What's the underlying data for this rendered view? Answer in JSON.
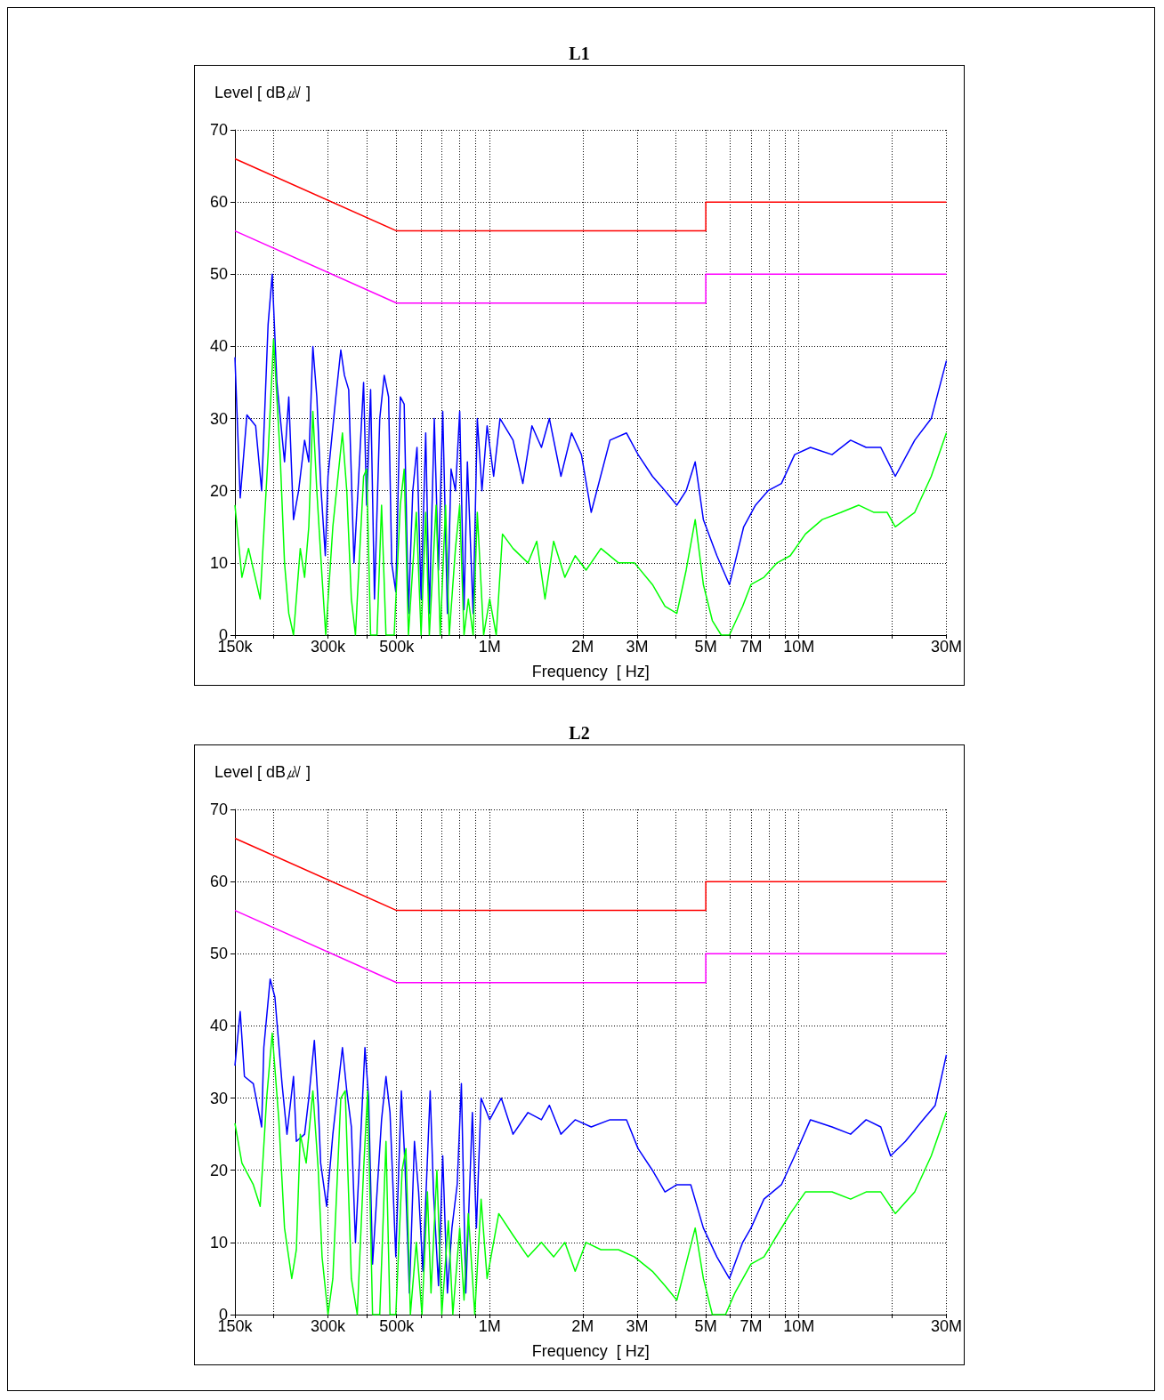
{
  "chart_data": [
    {
      "type": "line",
      "title": "L1",
      "xlabel": "Frequency  [ Hz]",
      "ylabel": "Level [ dB㎶ ]",
      "log": "x",
      "grid": true,
      "xlim": [
        150000,
        30000000
      ],
      "ylim": [
        0,
        70
      ],
      "xticks": [
        {
          "value": 150000,
          "label": "150k"
        },
        {
          "value": 200000,
          "label": null
        },
        {
          "value": 300000,
          "label": "300k"
        },
        {
          "value": 400000,
          "label": null
        },
        {
          "value": 500000,
          "label": "500k"
        },
        {
          "value": 600000,
          "label": null
        },
        {
          "value": 700000,
          "label": null
        },
        {
          "value": 800000,
          "label": null
        },
        {
          "value": 900000,
          "label": null
        },
        {
          "value": 1000000,
          "label": "1M"
        },
        {
          "value": 2000000,
          "label": "2M"
        },
        {
          "value": 3000000,
          "label": "3M"
        },
        {
          "value": 4000000,
          "label": null
        },
        {
          "value": 5000000,
          "label": "5M"
        },
        {
          "value": 6000000,
          "label": null
        },
        {
          "value": 7000000,
          "label": "7M"
        },
        {
          "value": 8000000,
          "label": null
        },
        {
          "value": 9000000,
          "label": null
        },
        {
          "value": 10000000,
          "label": "10M"
        },
        {
          "value": 20000000,
          "label": null
        },
        {
          "value": 30000000,
          "label": "30M"
        }
      ],
      "yticks": [
        0,
        10,
        20,
        30,
        40,
        50,
        60,
        70
      ],
      "series": [
        {
          "color": "#ff0000",
          "x": [
            150000,
            500000,
            5000000,
            5000000,
            30000000
          ],
          "values": [
            66,
            56,
            56,
            60,
            60
          ]
        },
        {
          "color": "#ff00ff",
          "x": [
            150000,
            500000,
            5000000,
            5000000,
            30000000
          ],
          "values": [
            56,
            46,
            46,
            50,
            50
          ]
        },
        {
          "color": "#0000ff",
          "x": [
            150000,
            156000,
            164000,
            175000,
            183000,
            192000,
            198000,
            205000,
            217000,
            224000,
            232000,
            241000,
            252000,
            260000,
            268000,
            276000,
            284000,
            294000,
            300000,
            318000,
            330000,
            339000,
            350000,
            364000,
            375000,
            391000,
            400000,
            412000,
            424000,
            441000,
            456000,
            471000,
            482000,
            497000,
            514000,
            529000,
            546000,
            564000,
            582000,
            600000,
            621000,
            638000,
            662000,
            683000,
            705000,
            730000,
            750000,
            775000,
            800000,
            826000,
            847000,
            884000,
            912000,
            944000,
            981000,
            1030000,
            1080000,
            1190000,
            1280000,
            1370000,
            1470000,
            1560000,
            1700000,
            1840000,
            1980000,
            2130000,
            2450000,
            2770000,
            3020000,
            3360000,
            3690000,
            4030000,
            4320000,
            4620000,
            4910000,
            5430000,
            5960000,
            6210000,
            6630000,
            7240000,
            7950000,
            8780000,
            9690000,
            10900000,
            12800000,
            14700000,
            16500000,
            18400000,
            20500000,
            23700000,
            26800000,
            30000000
          ],
          "values": [
            38.5,
            19,
            30.5,
            29,
            20,
            43,
            50,
            35,
            24,
            33,
            16,
            20,
            27,
            24,
            40,
            33,
            21,
            11,
            22,
            33,
            39.5,
            36,
            34,
            10,
            20,
            35,
            18,
            34,
            5,
            30,
            36,
            33,
            10,
            6,
            33,
            32,
            3,
            20,
            26,
            5,
            28,
            3,
            30,
            9,
            31,
            3,
            23,
            20,
            31,
            3.5,
            24,
            3,
            30,
            20,
            29,
            22,
            30,
            27,
            21,
            29,
            26,
            30,
            22,
            28,
            25,
            17,
            27,
            28,
            25,
            22,
            20,
            18,
            20,
            24,
            16,
            11,
            7,
            10,
            15,
            18,
            20,
            21,
            25,
            26,
            25,
            27,
            26,
            26,
            22,
            27,
            30,
            38
          ]
        },
        {
          "color": "#00ff00",
          "x": [
            150000,
            158000,
            166000,
            181000,
            192000,
            200000,
            210000,
            217000,
            224000,
            232000,
            244000,
            252000,
            260000,
            268000,
            276000,
            287000,
            295000,
            311000,
            334000,
            345000,
            357000,
            368000,
            391000,
            400000,
            412000,
            432000,
            447000,
            462000,
            491000,
            514000,
            529000,
            546000,
            579000,
            600000,
            621000,
            638000,
            671000,
            692000,
            720000,
            740000,
            775000,
            800000,
            826000,
            853000,
            884000,
            912000,
            956000,
            1000000,
            1050000,
            1100000,
            1190000,
            1330000,
            1420000,
            1510000,
            1610000,
            1750000,
            1890000,
            2050000,
            2290000,
            2610000,
            2940000,
            3360000,
            3690000,
            4030000,
            4320000,
            4620000,
            4910000,
            5250000,
            5610000,
            5960000,
            6580000,
            7000000,
            7710000,
            8500000,
            9380000,
            10500000,
            11900000,
            13700000,
            15600000,
            17500000,
            19300000,
            20500000,
            23700000,
            26800000,
            30000000
          ],
          "values": [
            18,
            8,
            12,
            5,
            25,
            41,
            25,
            10,
            3,
            0,
            12,
            8,
            15,
            31,
            20,
            8,
            0,
            15,
            28,
            20,
            5,
            0,
            22,
            23,
            0,
            0,
            18,
            0,
            0,
            18,
            23,
            0,
            17,
            0,
            17,
            0,
            18,
            0,
            18,
            0,
            12,
            18,
            0,
            5,
            0,
            17,
            0,
            5,
            0,
            14,
            12,
            10,
            13,
            5,
            13,
            8,
            11,
            9,
            12,
            10,
            10,
            7,
            4,
            3,
            9,
            16,
            7,
            2,
            0,
            0,
            4,
            7,
            8,
            10,
            11,
            14,
            16,
            17,
            18,
            17,
            17,
            15,
            17,
            22,
            28
          ]
        }
      ]
    },
    {
      "type": "line",
      "title": "L2",
      "xlabel": "Frequency  [ Hz]",
      "ylabel": "Level [ dB㎶ ]",
      "log": "x",
      "grid": true,
      "xlim": [
        150000,
        30000000
      ],
      "ylim": [
        0,
        70
      ],
      "xticks": [
        {
          "value": 150000,
          "label": "150k"
        },
        {
          "value": 200000,
          "label": null
        },
        {
          "value": 300000,
          "label": "300k"
        },
        {
          "value": 400000,
          "label": null
        },
        {
          "value": 500000,
          "label": "500k"
        },
        {
          "value": 600000,
          "label": null
        },
        {
          "value": 700000,
          "label": null
        },
        {
          "value": 800000,
          "label": null
        },
        {
          "value": 900000,
          "label": null
        },
        {
          "value": 1000000,
          "label": "1M"
        },
        {
          "value": 2000000,
          "label": "2M"
        },
        {
          "value": 3000000,
          "label": "3M"
        },
        {
          "value": 4000000,
          "label": null
        },
        {
          "value": 5000000,
          "label": "5M"
        },
        {
          "value": 6000000,
          "label": null
        },
        {
          "value": 7000000,
          "label": "7M"
        },
        {
          "value": 8000000,
          "label": null
        },
        {
          "value": 9000000,
          "label": null
        },
        {
          "value": 10000000,
          "label": "10M"
        },
        {
          "value": 20000000,
          "label": null
        },
        {
          "value": 30000000,
          "label": "30M"
        }
      ],
      "yticks": [
        0,
        10,
        20,
        30,
        40,
        50,
        60,
        70
      ],
      "series": [
        {
          "color": "#ff0000",
          "x": [
            150000,
            500000,
            5000000,
            5000000,
            30000000
          ],
          "values": [
            66,
            56,
            56,
            60,
            60
          ]
        },
        {
          "color": "#ff00ff",
          "x": [
            150000,
            500000,
            5000000,
            5000000,
            30000000
          ],
          "values": [
            56,
            46,
            46,
            50,
            50
          ]
        },
        {
          "color": "#0000ff",
          "x": [
            150000,
            156000,
            161000,
            172000,
            183000,
            186000,
            195000,
            202000,
            213000,
            221000,
            232000,
            237000,
            252000,
            260000,
            271000,
            279000,
            284000,
            297000,
            311000,
            334000,
            345000,
            357000,
            368000,
            384000,
            395000,
            406000,
            418000,
            447000,
            462000,
            476000,
            497000,
            518000,
            532000,
            550000,
            571000,
            589000,
            608000,
            642000,
            658000,
            683000,
            705000,
            730000,
            755000,
            785000,
            810000,
            837000,
            879000,
            906000,
            938000,
            1000000,
            1090000,
            1190000,
            1330000,
            1470000,
            1560000,
            1700000,
            1890000,
            2130000,
            2450000,
            2770000,
            3020000,
            3360000,
            3690000,
            4030000,
            4470000,
            4910000,
            5430000,
            5960000,
            6580000,
            7000000,
            7710000,
            8780000,
            9690000,
            10900000,
            12800000,
            14700000,
            16500000,
            18400000,
            19800000,
            22100000,
            25200000,
            27600000,
            30000000
          ],
          "values": [
            34.5,
            42,
            33,
            32,
            26,
            37,
            46.5,
            44,
            32,
            25,
            33,
            24,
            25,
            30,
            38,
            29,
            21,
            15,
            25,
            37,
            31,
            26,
            10,
            26,
            37,
            30,
            7,
            27,
            33,
            28,
            8,
            31,
            21,
            3,
            24,
            17,
            6,
            31,
            17,
            4,
            22,
            3,
            12,
            18,
            32,
            3,
            28,
            12,
            30,
            27,
            30,
            25,
            28,
            27,
            29,
            25,
            27,
            26,
            27,
            27,
            23,
            20,
            17,
            18,
            18,
            12,
            8,
            5,
            10,
            12,
            16,
            18,
            22,
            27,
            26,
            25,
            27,
            26,
            22,
            24,
            27,
            29,
            36
          ]
        },
        {
          "color": "#00ff00",
          "x": [
            150000,
            158000,
            172000,
            181000,
            190000,
            198000,
            208000,
            217000,
            229000,
            237000,
            244000,
            255000,
            268000,
            279000,
            287000,
            300000,
            311000,
            330000,
            341000,
            357000,
            373000,
            391000,
            403000,
            418000,
            441000,
            462000,
            476000,
            497000,
            521000,
            536000,
            554000,
            579000,
            604000,
            629000,
            646000,
            675000,
            700000,
            735000,
            760000,
            800000,
            826000,
            853000,
            895000,
            938000,
            981000,
            1070000,
            1190000,
            1330000,
            1470000,
            1610000,
            1750000,
            1890000,
            2050000,
            2290000,
            2610000,
            2940000,
            3360000,
            3690000,
            4030000,
            4620000,
            4910000,
            5250000,
            5790000,
            6210000,
            7000000,
            7710000,
            8500000,
            9380000,
            10500000,
            12800000,
            14700000,
            16500000,
            18400000,
            20500000,
            23700000,
            26800000,
            30000000
          ],
          "values": [
            26.5,
            21,
            18,
            15,
            30,
            39,
            27,
            12,
            5,
            9,
            25,
            21,
            31,
            20,
            8,
            0,
            5,
            30,
            31,
            5,
            0,
            20,
            31,
            0,
            0,
            24,
            0,
            0,
            20,
            23,
            0,
            10,
            0,
            17,
            3,
            20,
            0,
            13,
            0,
            12,
            2,
            14,
            0,
            16,
            5,
            14,
            11,
            8,
            10,
            8,
            10,
            6,
            10,
            9,
            9,
            8,
            6,
            4,
            2,
            12,
            5,
            0,
            0,
            3,
            7,
            8,
            11,
            14,
            17,
            17,
            16,
            17,
            17,
            14,
            17,
            22,
            28
          ]
        }
      ]
    }
  ]
}
